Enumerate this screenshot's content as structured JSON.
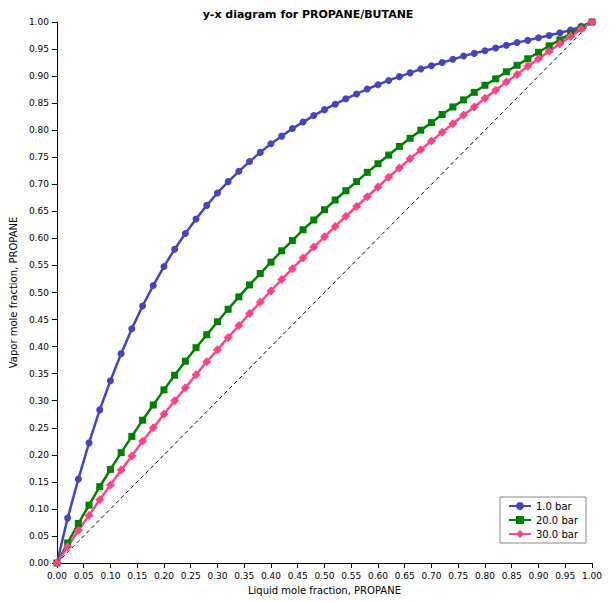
{
  "chart_data": {
    "type": "line",
    "title": "y-x diagram for PROPANE/BUTANE",
    "x_label": "Liquid mole fraction, PROPANE",
    "y_label": "Vapor mole fraction, PROPANE",
    "x": [
      0,
      0.02,
      0.04,
      0.06,
      0.08,
      0.1,
      0.12,
      0.14,
      0.16,
      0.18,
      0.2,
      0.22,
      0.24,
      0.26,
      0.28,
      0.3,
      0.32,
      0.34,
      0.36,
      0.38,
      0.4,
      0.42,
      0.44,
      0.46,
      0.48,
      0.5,
      0.52,
      0.54,
      0.56,
      0.58,
      0.6,
      0.62,
      0.64,
      0.66,
      0.68,
      0.7,
      0.72,
      0.74,
      0.76,
      0.78,
      0.8,
      0.82,
      0.84,
      0.86,
      0.88,
      0.9,
      0.92,
      0.94,
      0.96,
      0.98,
      1
    ],
    "series": [
      {
        "name": "1.0 bar",
        "color": "#4444bb",
        "marker": "circle",
        "line_style": "solid",
        "values": [
          0,
          0.083,
          0.155,
          0.222,
          0.283,
          0.337,
          0.387,
          0.433,
          0.475,
          0.513,
          0.548,
          0.58,
          0.609,
          0.636,
          0.661,
          0.684,
          0.705,
          0.724,
          0.742,
          0.759,
          0.775,
          0.789,
          0.803,
          0.815,
          0.827,
          0.838,
          0.848,
          0.858,
          0.867,
          0.876,
          0.884,
          0.892,
          0.899,
          0.906,
          0.913,
          0.919,
          0.925,
          0.931,
          0.937,
          0.942,
          0.947,
          0.952,
          0.957,
          0.962,
          0.966,
          0.971,
          0.975,
          0.98,
          0.985,
          0.992,
          1
        ]
      },
      {
        "name": "20.0 bar",
        "color": "#008000",
        "marker": "square",
        "line_style": "solid",
        "values": [
          0,
          0.037,
          0.073,
          0.107,
          0.141,
          0.173,
          0.204,
          0.234,
          0.264,
          0.292,
          0.32,
          0.347,
          0.373,
          0.398,
          0.422,
          0.446,
          0.469,
          0.492,
          0.514,
          0.535,
          0.556,
          0.577,
          0.596,
          0.616,
          0.634,
          0.653,
          0.671,
          0.688,
          0.705,
          0.722,
          0.738,
          0.754,
          0.77,
          0.785,
          0.8,
          0.814,
          0.829,
          0.843,
          0.856,
          0.87,
          0.883,
          0.895,
          0.908,
          0.92,
          0.932,
          0.944,
          0.956,
          0.967,
          0.978,
          0.989,
          1
        ]
      },
      {
        "name": "30.0 bar",
        "color": "#ff4488",
        "marker": "diamond",
        "line_style": "solid",
        "values": [
          0,
          0.03,
          0.06,
          0.088,
          0.117,
          0.144,
          0.172,
          0.198,
          0.225,
          0.25,
          0.275,
          0.3,
          0.324,
          0.348,
          0.372,
          0.394,
          0.417,
          0.439,
          0.461,
          0.482,
          0.503,
          0.524,
          0.544,
          0.564,
          0.584,
          0.603,
          0.622,
          0.641,
          0.659,
          0.677,
          0.695,
          0.713,
          0.73,
          0.747,
          0.764,
          0.78,
          0.796,
          0.812,
          0.828,
          0.843,
          0.859,
          0.874,
          0.889,
          0.903,
          0.918,
          0.932,
          0.946,
          0.96,
          0.973,
          0.987,
          1
        ]
      },
      {
        "color": "#000000",
        "marker": "none",
        "line_style": "dashed",
        "values": [
          0,
          0.02,
          0.04,
          0.06,
          0.08,
          0.1,
          0.12,
          0.14,
          0.16,
          0.18,
          0.2,
          0.22,
          0.24,
          0.26,
          0.28,
          0.3,
          0.32,
          0.34,
          0.36,
          0.38,
          0.4,
          0.42,
          0.44,
          0.46,
          0.48,
          0.5,
          0.52,
          0.54,
          0.56,
          0.58,
          0.6,
          0.62,
          0.64,
          0.66,
          0.68,
          0.7,
          0.72,
          0.74,
          0.76,
          0.78,
          0.8,
          0.82,
          0.84,
          0.86,
          0.88,
          0.9,
          0.92,
          0.94,
          0.96,
          0.98,
          1
        ]
      }
    ],
    "xlim": [
      0,
      1
    ],
    "ylim": [
      0,
      1
    ],
    "xticks": [
      {
        "value": 0,
        "label": "0.00"
      },
      {
        "value": 0.05,
        "label": "0.05"
      },
      {
        "value": 0.1,
        "label": "0.10"
      },
      {
        "value": 0.15,
        "label": "0.15"
      },
      {
        "value": 0.2,
        "label": "0.20"
      },
      {
        "value": 0.25,
        "label": "0.25"
      },
      {
        "value": 0.3,
        "label": "0.30"
      },
      {
        "value": 0.35,
        "label": "0.35"
      },
      {
        "value": 0.4,
        "label": "0.40"
      },
      {
        "value": 0.45,
        "label": "0.45"
      },
      {
        "value": 0.5,
        "label": "0.50"
      },
      {
        "value": 0.55,
        "label": "0.55"
      },
      {
        "value": 0.6,
        "label": "0.60"
      },
      {
        "value": 0.65,
        "label": "0.65"
      },
      {
        "value": 0.7,
        "label": "0.70"
      },
      {
        "value": 0.75,
        "label": "0.75"
      },
      {
        "value": 0.8,
        "label": "0.80"
      },
      {
        "value": 0.85,
        "label": "0.85"
      },
      {
        "value": 0.9,
        "label": "0.90"
      },
      {
        "value": 0.95,
        "label": "0.95"
      },
      {
        "value": 1,
        "label": "1.00"
      }
    ],
    "yticks": [
      {
        "value": 0,
        "label": "0.00"
      },
      {
        "value": 0.05,
        "label": "0.05"
      },
      {
        "value": 0.1,
        "label": "0.10"
      },
      {
        "value": 0.15,
        "label": "0.15"
      },
      {
        "value": 0.2,
        "label": "0.20"
      },
      {
        "value": 0.25,
        "label": "0.25"
      },
      {
        "value": 0.3,
        "label": "0.30"
      },
      {
        "value": 0.35,
        "label": "0.35"
      },
      {
        "value": 0.4,
        "label": "0.40"
      },
      {
        "value": 0.45,
        "label": "0.45"
      },
      {
        "value": 0.5,
        "label": "0.50"
      },
      {
        "value": 0.55,
        "label": "0.55"
      },
      {
        "value": 0.6,
        "label": "0.60"
      },
      {
        "value": 0.65,
        "label": "0.65"
      },
      {
        "value": 0.7,
        "label": "0.70"
      },
      {
        "value": 0.75,
        "label": "0.75"
      },
      {
        "value": 0.8,
        "label": "0.80"
      },
      {
        "value": 0.85,
        "label": "0.85"
      },
      {
        "value": 0.9,
        "label": "0.90"
      },
      {
        "value": 0.95,
        "label": "0.95"
      },
      {
        "value": 1,
        "label": "1.00"
      }
    ],
    "grid": false,
    "legend": "lower right"
  }
}
